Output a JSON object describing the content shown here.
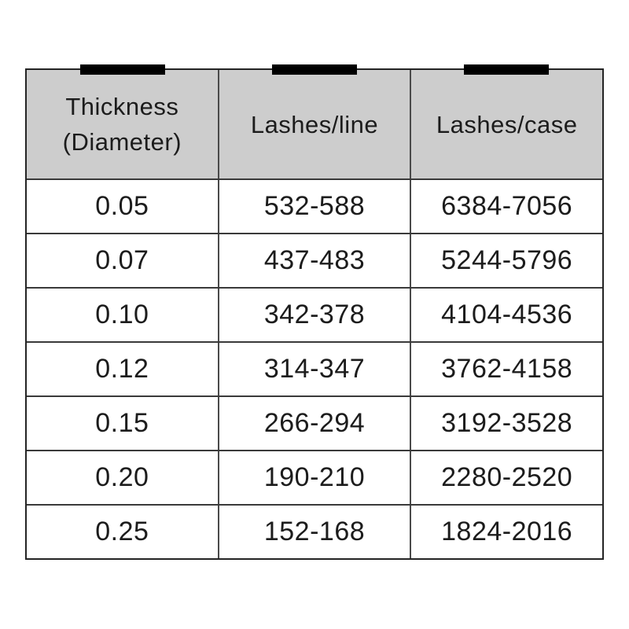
{
  "chart_data": {
    "type": "table",
    "title": "",
    "columns": [
      "Thickness (Diameter)",
      "Lashes/line",
      "Lashes/case"
    ],
    "categories": [
      "0.05",
      "0.07",
      "0.10",
      "0.12",
      "0.15",
      "0.20",
      "0.25"
    ],
    "series": [
      {
        "name": "Lashes/line",
        "values": [
          "532-588",
          "437-483",
          "342-378",
          "314-347",
          "266-294",
          "190-210",
          "152-168"
        ]
      },
      {
        "name": "Lashes/case",
        "values": [
          "6384-7056",
          "5244-5796",
          "4104-4536",
          "3762-4158",
          "3192-3528",
          "2280-2520",
          "1824-2016"
        ]
      }
    ]
  },
  "table": {
    "headers": [
      {
        "label": "Thickness (Diameter)",
        "lines": [
          "Thickness",
          "(Diameter)"
        ]
      },
      {
        "label": "Lashes/line",
        "lines": [
          "Lashes/line"
        ]
      },
      {
        "label": "Lashes/case",
        "lines": [
          "Lashes/case"
        ]
      }
    ],
    "rows": [
      [
        "0.05",
        "532-588",
        "6384-7056"
      ],
      [
        "0.07",
        "437-483",
        "5244-5796"
      ],
      [
        "0.10",
        "342-378",
        "4104-4536"
      ],
      [
        "0.12",
        "314-347",
        "3762-4158"
      ],
      [
        "0.15",
        "266-294",
        "3192-3528"
      ],
      [
        "0.20",
        "190-210",
        "2280-2520"
      ],
      [
        "0.25",
        "152-168",
        "1824-2016"
      ]
    ]
  },
  "colors": {
    "header_bg": "#cdcdcd",
    "grid_line": "#3a3a3a",
    "outer_border": "#242424",
    "column_tab": "#000000",
    "background": "#ffffff",
    "text": "#1c1c1c"
  }
}
